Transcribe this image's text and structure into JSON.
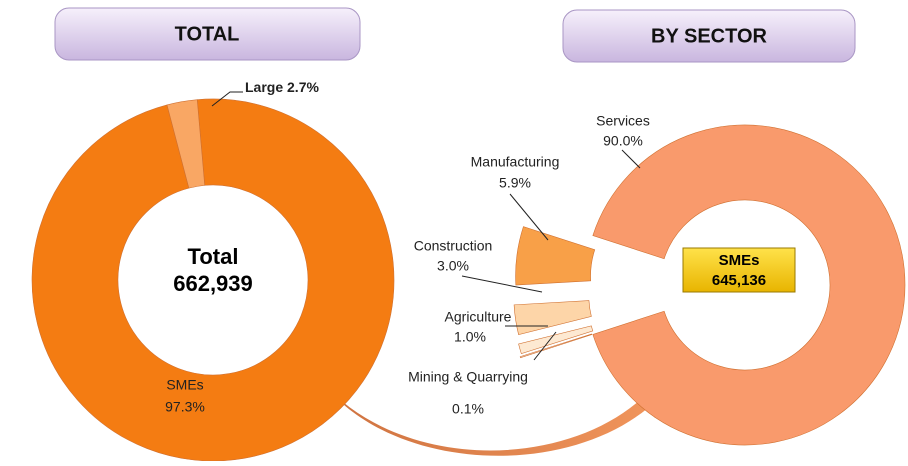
{
  "chart_data": [
    {
      "type": "donut",
      "title": "TOTAL",
      "center_lines": [
        "Total",
        "662,939"
      ],
      "categories": [
        "SMEs",
        "Large"
      ],
      "values": [
        97.3,
        2.7
      ],
      "value_labels": [
        "97.3%",
        "2.7%"
      ],
      "colors": [
        "#f47c12",
        "#f9a764"
      ]
    },
    {
      "type": "donut",
      "title": "BY SECTOR",
      "center_lines": [
        "SMEs",
        "645,136"
      ],
      "categories": [
        "Services",
        "Manufacturing",
        "Construction",
        "Agriculture",
        "Mining & Quarrying"
      ],
      "values": [
        90.0,
        5.9,
        3.0,
        1.0,
        0.1
      ],
      "value_labels": [
        "90.0%",
        "5.9%",
        "3.0%",
        "1.0%",
        "0.1%"
      ],
      "colors": [
        "#f99a6c",
        "#f8a048",
        "#fdd5a8",
        "#fde9d2",
        "#ffffff"
      ]
    }
  ]
}
